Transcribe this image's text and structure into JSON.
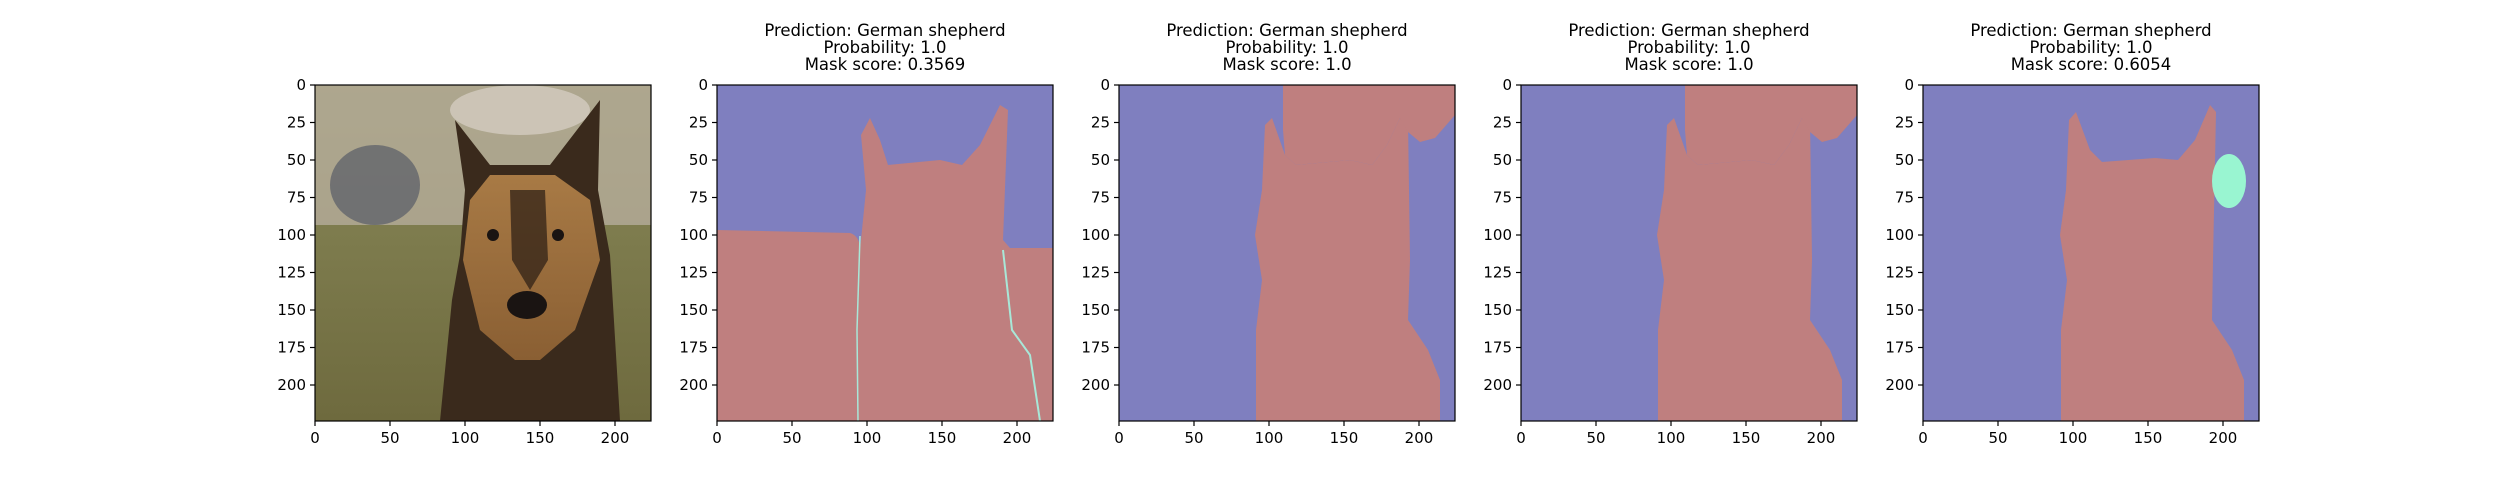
{
  "chart_data": [
    {
      "type": "image",
      "content": "photo-german-shepherd",
      "xticks": [
        "0",
        "50",
        "100",
        "150",
        "200"
      ],
      "yticks": [
        "0",
        "25",
        "50",
        "75",
        "100",
        "125",
        "150",
        "175",
        "200"
      ],
      "xlim": [
        0,
        224
      ],
      "ylim": [
        224,
        0
      ]
    },
    {
      "type": "segmentation-mask",
      "title_lines": [
        "Prediction: German shepherd",
        "Probability: 1.0",
        "Mask score: 0.3569"
      ],
      "xticks": [
        "0",
        "50",
        "100",
        "150",
        "200"
      ],
      "yticks": [
        "0",
        "25",
        "50",
        "75",
        "100",
        "125",
        "150",
        "175",
        "200"
      ],
      "xlim": [
        0,
        224
      ],
      "ylim": [
        224,
        0
      ]
    },
    {
      "type": "segmentation-mask",
      "title_lines": [
        "Prediction: German shepherd",
        "Probability: 1.0",
        "Mask score: 1.0"
      ],
      "xticks": [
        "0",
        "50",
        "100",
        "150",
        "200"
      ],
      "yticks": [
        "0",
        "25",
        "50",
        "75",
        "100",
        "125",
        "150",
        "175",
        "200"
      ],
      "xlim": [
        0,
        224
      ],
      "ylim": [
        224,
        0
      ]
    },
    {
      "type": "segmentation-mask",
      "title_lines": [
        "Prediction: German shepherd",
        "Probability: 1.0",
        "Mask score: 1.0"
      ],
      "xticks": [
        "0",
        "50",
        "100",
        "150",
        "200"
      ],
      "yticks": [
        "0",
        "25",
        "50",
        "75",
        "100",
        "125",
        "150",
        "175",
        "200"
      ],
      "xlim": [
        0,
        224
      ],
      "ylim": [
        224,
        0
      ]
    },
    {
      "type": "segmentation-mask",
      "title_lines": [
        "Prediction: German shepherd",
        "Probability: 1.0",
        "Mask score: 0.6054"
      ],
      "xticks": [
        "0",
        "50",
        "100",
        "150",
        "200"
      ],
      "yticks": [
        "0",
        "25",
        "50",
        "75",
        "100",
        "125",
        "150",
        "175",
        "200"
      ],
      "xlim": [
        0,
        224
      ],
      "ylim": [
        224,
        0
      ]
    }
  ],
  "colors": {
    "background_class": "#7f7fbf",
    "dog_class": "#bf7f7f",
    "extra_class": "#99f5d1",
    "axis": "#000000"
  }
}
